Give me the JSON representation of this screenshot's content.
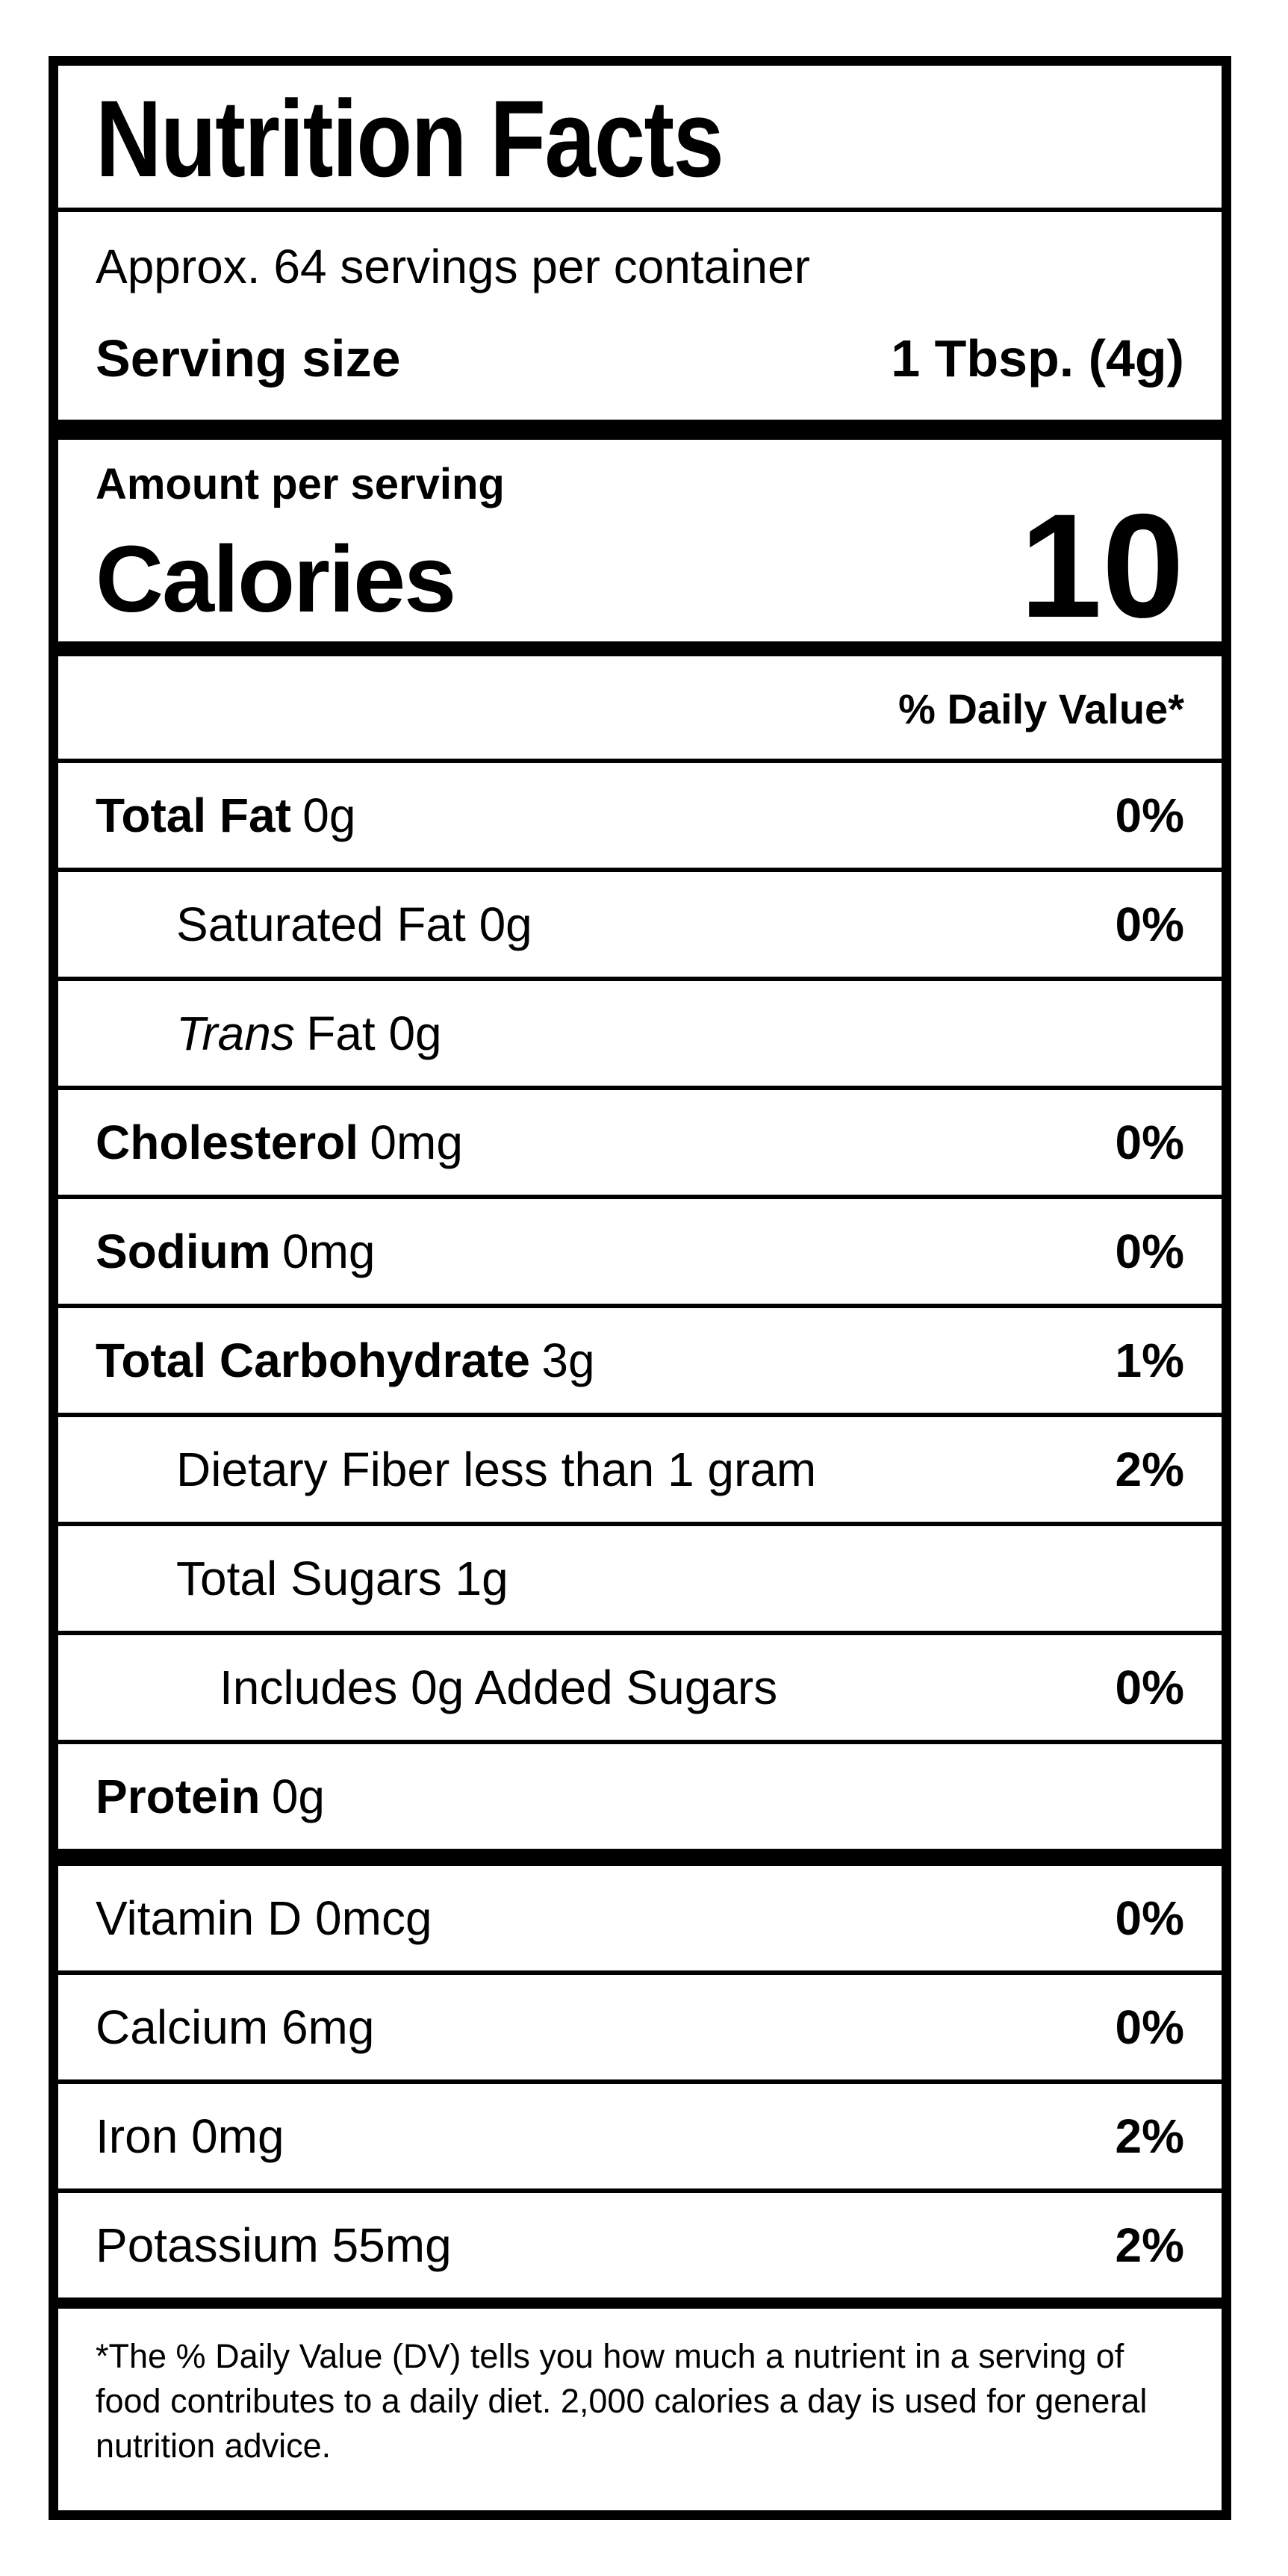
{
  "colors": {
    "text": "#000000",
    "background": "#ffffff"
  },
  "label": {
    "title": "Nutrition Facts",
    "servings_per_container": "Approx. 64 servings per container",
    "serving_size_label": "Serving size",
    "serving_size_value": "1 Tbsp. (4g)",
    "amount_per_serving": "Amount per serving",
    "calories_label": "Calories",
    "calories_value": "10",
    "daily_value_header": "% Daily Value*",
    "nutrients": [
      {
        "bold": "Total Fat",
        "italic": "",
        "text": "0g",
        "dv": "0%"
      },
      {
        "bold": "",
        "italic": "",
        "text": "Saturated Fat 0g",
        "dv": "0%"
      },
      {
        "bold": "",
        "italic": "Trans",
        "text": "Fat 0g",
        "dv": ""
      },
      {
        "bold": "Cholesterol",
        "italic": "",
        "text": "0mg",
        "dv": "0%"
      },
      {
        "bold": "Sodium",
        "italic": "",
        "text": "0mg",
        "dv": "0%"
      },
      {
        "bold": "Total Carbohydrate",
        "italic": "",
        "text": "3g",
        "dv": "1%"
      },
      {
        "bold": "",
        "italic": "",
        "text": "Dietary Fiber less than 1 gram",
        "dv": "2%"
      },
      {
        "bold": "",
        "italic": "",
        "text": "Total Sugars 1g",
        "dv": ""
      },
      {
        "bold": "",
        "italic": "",
        "text": "Includes 0g Added Sugars",
        "dv": "0%"
      },
      {
        "bold": "Protein",
        "italic": "",
        "text": "0g",
        "dv": ""
      }
    ],
    "vitamins": [
      {
        "text": "Vitamin D 0mcg",
        "dv": "0%"
      },
      {
        "text": "Calcium 6mg",
        "dv": "0%"
      },
      {
        "text": "Iron 0mg",
        "dv": "2%"
      },
      {
        "text": "Potassium 55mg",
        "dv": "2%"
      }
    ],
    "footnote": "*The % Daily Value (DV) tells you how much a nutrient in a serving of food contributes to a daily diet. 2,000 calories a day is used for general nutrition advice."
  }
}
